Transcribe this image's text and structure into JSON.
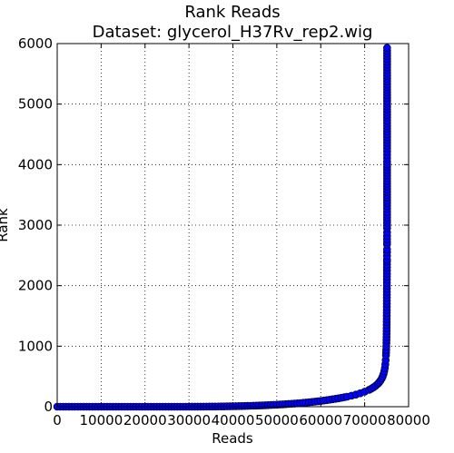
{
  "chart_data": {
    "type": "scatter",
    "title_lines": [
      "Rank Reads",
      "Dataset: glycerol_H37Rv_rep2.wig"
    ],
    "xlabel": "Reads",
    "ylabel": "Rank",
    "xlim": [
      0,
      80000
    ],
    "ylim": [
      0,
      6000
    ],
    "x_ticks": [
      0,
      10000,
      20000,
      30000,
      40000,
      50000,
      60000,
      70000,
      80000
    ],
    "x_tick_labels": [
      "0",
      "10000",
      "20000",
      "30000",
      "40000",
      "50000",
      "60000",
      "70000",
      "80000"
    ],
    "y_ticks": [
      0,
      1000,
      2000,
      3000,
      4000,
      5000,
      6000
    ],
    "y_tick_labels": [
      "0",
      "1000",
      "2000",
      "3000",
      "4000",
      "5000",
      "6000"
    ],
    "grid": true,
    "marker_color": "#0000ff",
    "marker_edge_color": "#000000",
    "points": [
      [
        0,
        0
      ],
      [
        2000,
        0
      ],
      [
        4000,
        0
      ],
      [
        6000,
        0
      ],
      [
        8000,
        0
      ],
      [
        10000,
        0
      ],
      [
        12000,
        0
      ],
      [
        14000,
        0
      ],
      [
        16000,
        0
      ],
      [
        18000,
        0
      ],
      [
        20000,
        0
      ],
      [
        22000,
        0
      ],
      [
        24000,
        0
      ],
      [
        26000,
        0
      ],
      [
        28000,
        0
      ],
      [
        30000,
        0
      ],
      [
        32000,
        1
      ],
      [
        34000,
        2
      ],
      [
        36000,
        3
      ],
      [
        38000,
        5
      ],
      [
        40000,
        8
      ],
      [
        42000,
        11
      ],
      [
        44000,
        15
      ],
      [
        46000,
        20
      ],
      [
        48000,
        26
      ],
      [
        50000,
        33
      ],
      [
        52000,
        42
      ],
      [
        54000,
        52
      ],
      [
        56000,
        64
      ],
      [
        58000,
        78
      ],
      [
        60000,
        95
      ],
      [
        62000,
        115
      ],
      [
        64000,
        138
      ],
      [
        66000,
        165
      ],
      [
        67000,
        182
      ],
      [
        68000,
        200
      ],
      [
        69000,
        222
      ],
      [
        70000,
        248
      ],
      [
        71000,
        278
      ],
      [
        71500,
        297
      ],
      [
        72000,
        320
      ],
      [
        72500,
        346
      ],
      [
        73000,
        378
      ],
      [
        73300,
        402
      ],
      [
        73600,
        432
      ],
      [
        73900,
        468
      ],
      [
        74100,
        500
      ],
      [
        74300,
        540
      ],
      [
        74450,
        585
      ],
      [
        74600,
        640
      ],
      [
        74700,
        700
      ],
      [
        74780,
        770
      ],
      [
        74850,
        850
      ],
      [
        74900,
        940
      ],
      [
        74950,
        1050
      ],
      [
        74980,
        1150
      ],
      [
        75000,
        1250
      ],
      [
        75010,
        1350
      ],
      [
        75020,
        1450
      ],
      [
        75030,
        1550
      ],
      [
        75040,
        1650
      ],
      [
        75045,
        1750
      ],
      [
        75050,
        1850
      ],
      [
        75055,
        1950
      ],
      [
        75060,
        2050
      ],
      [
        75065,
        2150
      ],
      [
        75070,
        2200
      ],
      [
        75075,
        2300
      ],
      [
        75080,
        2400
      ],
      [
        75082,
        2430
      ],
      [
        75085,
        2550
      ],
      [
        75088,
        2600
      ],
      [
        75090,
        2680
      ],
      [
        75092,
        2720
      ],
      [
        75094,
        2820
      ],
      [
        75096,
        2880
      ],
      [
        75098,
        2950
      ],
      [
        75100,
        3220
      ],
      [
        75102,
        3320
      ],
      [
        75104,
        4050
      ],
      [
        75106,
        4270
      ],
      [
        75110,
        5930
      ]
    ]
  }
}
